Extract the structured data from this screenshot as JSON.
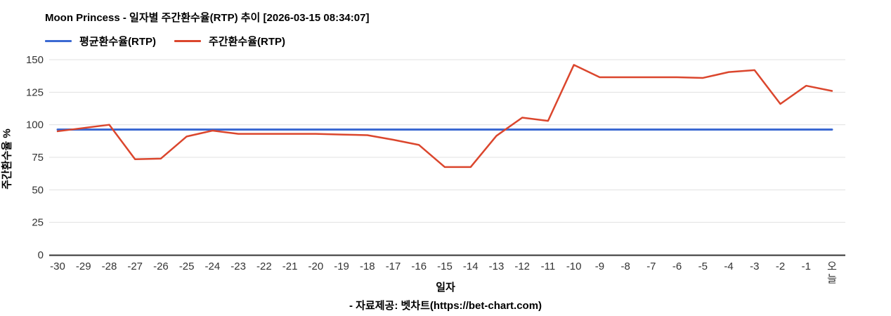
{
  "title": "Moon Princess - 일자별 주간환수율(RTP) 추이 [2026-03-15 08:34:07]",
  "legend": [
    {
      "label": "평균환수율(RTP)",
      "color": "#3b69d2"
    },
    {
      "label": "주간환수율(RTP)",
      "color": "#db462d"
    }
  ],
  "footer": {
    "attribution": "- 자료제공: 벳차트(https://bet-chart.com)"
  },
  "chart_data": {
    "type": "line",
    "title": "Moon Princess - 일자별 주간환수율(RTP) 추이 [2026-03-15 08:34:07]",
    "xlabel": "일자",
    "ylabel": "주간환수율 %",
    "ylim": [
      0,
      150
    ],
    "yticks": [
      0,
      25,
      50,
      75,
      100,
      125,
      150
    ],
    "grid": true,
    "legend_position": "top-left",
    "categories": [
      "-30",
      "-29",
      "-28",
      "-27",
      "-26",
      "-25",
      "-24",
      "-23",
      "-22",
      "-21",
      "-20",
      "-19",
      "-18",
      "-17",
      "-16",
      "-15",
      "-14",
      "-13",
      "-12",
      "-11",
      "-10",
      "-9",
      "-8",
      "-7",
      "-6",
      "-5",
      "-4",
      "-3",
      "-2",
      "-1",
      "오늘"
    ],
    "series": [
      {
        "name": "평균환수율(RTP)",
        "color": "#3b69d2",
        "values": [
          96.3,
          96.3,
          96.3,
          96.3,
          96.3,
          96.3,
          96.3,
          96.3,
          96.3,
          96.3,
          96.3,
          96.3,
          96.3,
          96.3,
          96.3,
          96.3,
          96.3,
          96.3,
          96.3,
          96.3,
          96.3,
          96.3,
          96.3,
          96.3,
          96.3,
          96.3,
          96.3,
          96.3,
          96.3,
          96.3,
          96.3
        ]
      },
      {
        "name": "주간환수율(RTP)",
        "color": "#db462d",
        "values": [
          95,
          97.5,
          100,
          73.5,
          74,
          91,
          95.5,
          93,
          93,
          93,
          93,
          92.5,
          92,
          88.5,
          84.5,
          67.5,
          67.5,
          91.5,
          105.5,
          103,
          146,
          136.5,
          136.5,
          136.5,
          136.5,
          136,
          140.5,
          142,
          116,
          130,
          126
        ]
      }
    ],
    "colors": {
      "grid": "#e0e0e0",
      "axis": "#333333",
      "tick_text": "#333333"
    }
  }
}
